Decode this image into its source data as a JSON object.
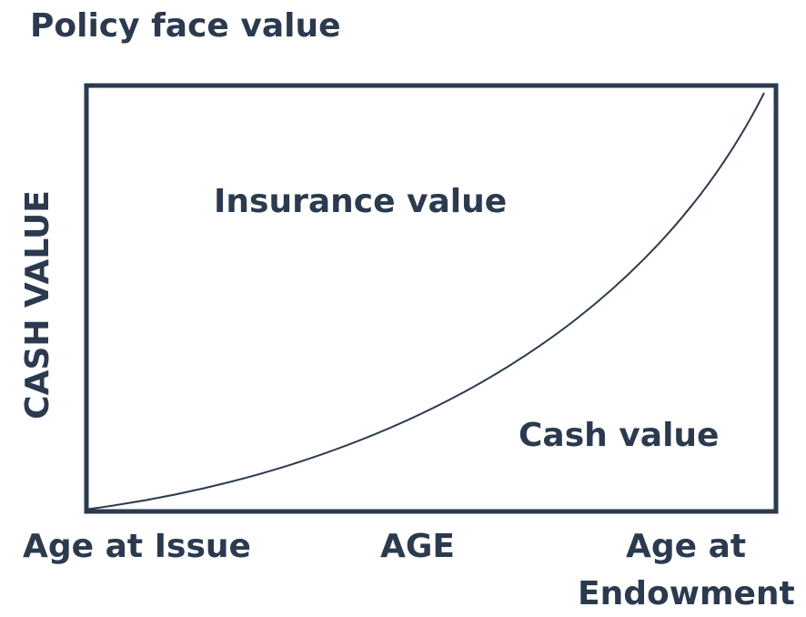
{
  "diagram": {
    "top_label": "Policy face value",
    "y_axis_label": "CASH VALUE",
    "x_axis_label": "AGE",
    "x_start_label": "Age at Issue",
    "x_end_label_line1": "Age at",
    "x_end_label_line2": "Endowment",
    "region_above_curve": "Insurance value",
    "region_below_curve": "Cash value",
    "curve": "cash value rising from zero at Age at Issue to policy face value at Age at Endowment",
    "colors": {
      "text": "#2b3a4e",
      "frame": "#2b3a4e",
      "curve": "#2b3a4e"
    }
  }
}
